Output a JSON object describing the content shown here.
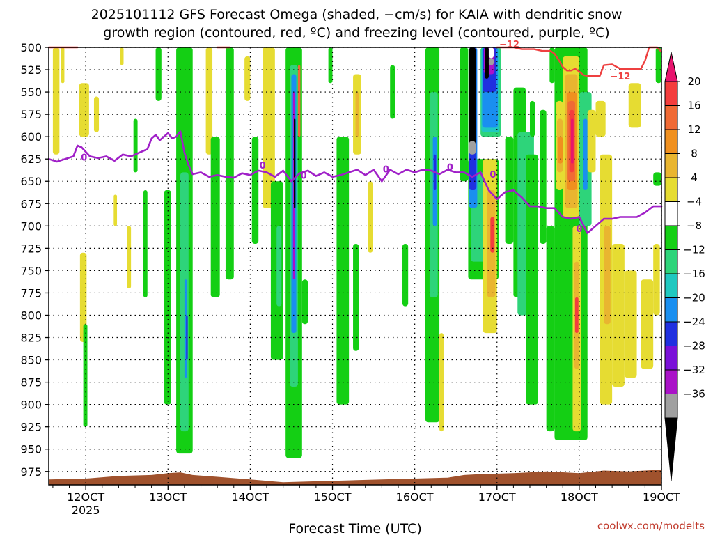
{
  "chart_data": {
    "type": "heatmap",
    "title_lines": [
      "2025101112 GFS Forecast Omega (shaded, −cm/s) for KAIA with dendritic snow",
      "growth region (contoured, red, ºC) and freezing level (contoured, purple, ºC)"
    ],
    "xlabel": "Forecast Time (UTC)",
    "credit": "coolwx.com/modelts",
    "x_range": [
      115.5,
      190
    ],
    "y_range": [
      500,
      990
    ],
    "y_ticks": [
      500,
      525,
      550,
      575,
      600,
      625,
      650,
      675,
      700,
      725,
      750,
      775,
      800,
      825,
      850,
      875,
      900,
      925,
      950,
      975
    ],
    "x_ticks": [
      {
        "value": 120,
        "label": "12OCT",
        "sublabel": "2025"
      },
      {
        "value": 130,
        "label": "13OCT",
        "sublabel": ""
      },
      {
        "value": 140,
        "label": "14OCT",
        "sublabel": ""
      },
      {
        "value": 150,
        "label": "15OCT",
        "sublabel": ""
      },
      {
        "value": 160,
        "label": "16OCT",
        "sublabel": ""
      },
      {
        "value": 170,
        "label": "17OCT",
        "sublabel": ""
      },
      {
        "value": 180,
        "label": "18OCT",
        "sublabel": ""
      },
      {
        "value": 190,
        "label": "19OCT",
        "sublabel": ""
      }
    ],
    "grid": true,
    "colorbar": {
      "labels": [
        "20",
        "16",
        "12",
        "8",
        "4",
        "−4",
        "−8",
        "−12",
        "−16",
        "−20",
        "−24",
        "−28",
        "−32",
        "−36"
      ],
      "colors": [
        "#e8146e",
        "#f43d3d",
        "#f06a35",
        "#f0901f",
        "#e9b530",
        "#e6dc32",
        "#ffffff",
        "#14cf14",
        "#2ed47a",
        "#20c8c0",
        "#1a8ff0",
        "#2030e0",
        "#7a10d8",
        "#aa12c8",
        "#a0a0a0",
        "#000000"
      ]
    },
    "shaded_regions": [
      {
        "x0": 116.0,
        "x1": 116.8,
        "p0": 500,
        "p1": 620,
        "color": "#e6dc32"
      },
      {
        "x0": 117.0,
        "x1": 117.4,
        "p0": 500,
        "p1": 540,
        "color": "#e6dc32"
      },
      {
        "x0": 119.2,
        "x1": 120.4,
        "p0": 540,
        "p1": 600,
        "color": "#e6dc32"
      },
      {
        "x0": 121.0,
        "x1": 121.6,
        "p0": 555,
        "p1": 595,
        "color": "#e6dc32"
      },
      {
        "x0": 119.3,
        "x1": 120.1,
        "p0": 730,
        "p1": 830,
        "color": "#e6dc32"
      },
      {
        "x0": 119.7,
        "x1": 120.2,
        "p0": 810,
        "p1": 925,
        "color": "#14cf14"
      },
      {
        "x0": 123.4,
        "x1": 123.8,
        "p0": 665,
        "p1": 700,
        "color": "#e6dc32"
      },
      {
        "x0": 124.2,
        "x1": 124.6,
        "p0": 500,
        "p1": 520,
        "color": "#e6dc32"
      },
      {
        "x0": 125.0,
        "x1": 125.5,
        "p0": 700,
        "p1": 770,
        "color": "#e6dc32"
      },
      {
        "x0": 125.8,
        "x1": 126.3,
        "p0": 580,
        "p1": 640,
        "color": "#14cf14"
      },
      {
        "x0": 127.0,
        "x1": 127.5,
        "p0": 660,
        "p1": 780,
        "color": "#14cf14"
      },
      {
        "x0": 128.5,
        "x1": 129.2,
        "p0": 500,
        "p1": 560,
        "color": "#14cf14"
      },
      {
        "x0": 129.5,
        "x1": 130.4,
        "p0": 660,
        "p1": 900,
        "color": "#14cf14"
      },
      {
        "x0": 131.0,
        "x1": 133.0,
        "p0": 500,
        "p1": 955,
        "color": "#14cf14"
      },
      {
        "x0": 131.5,
        "x1": 132.5,
        "p0": 640,
        "p1": 930,
        "color": "#2ed47a"
      },
      {
        "x0": 132.0,
        "x1": 132.3,
        "p0": 760,
        "p1": 870,
        "color": "#1a8ff0"
      },
      {
        "x0": 132.2,
        "x1": 132.4,
        "p0": 800,
        "p1": 850,
        "color": "#2030e0"
      },
      {
        "x0": 134.6,
        "x1": 135.4,
        "p0": 500,
        "p1": 620,
        "color": "#e6dc32"
      },
      {
        "x0": 135.2,
        "x1": 136.3,
        "p0": 600,
        "p1": 780,
        "color": "#14cf14"
      },
      {
        "x0": 137.0,
        "x1": 138.0,
        "p0": 500,
        "p1": 760,
        "color": "#14cf14"
      },
      {
        "x0": 139.3,
        "x1": 140.0,
        "p0": 510,
        "p1": 560,
        "color": "#e6dc32"
      },
      {
        "x0": 140.2,
        "x1": 141.0,
        "p0": 600,
        "p1": 720,
        "color": "#14cf14"
      },
      {
        "x0": 141.5,
        "x1": 143.0,
        "p0": 500,
        "p1": 680,
        "color": "#e6dc32"
      },
      {
        "x0": 142.5,
        "x1": 144.0,
        "p0": 650,
        "p1": 850,
        "color": "#14cf14"
      },
      {
        "x0": 143.2,
        "x1": 143.8,
        "p0": 700,
        "p1": 790,
        "color": "#2ed47a"
      },
      {
        "x0": 144.3,
        "x1": 146.3,
        "p0": 500,
        "p1": 960,
        "color": "#14cf14"
      },
      {
        "x0": 144.8,
        "x1": 145.8,
        "p0": 520,
        "p1": 880,
        "color": "#2ed47a"
      },
      {
        "x0": 145.0,
        "x1": 145.6,
        "p0": 530,
        "p1": 820,
        "color": "#1a8ff0"
      },
      {
        "x0": 145.2,
        "x1": 145.4,
        "p0": 550,
        "p1": 760,
        "color": "#aa12c8"
      },
      {
        "x0": 145.3,
        "x1": 145.5,
        "p0": 580,
        "p1": 680,
        "color": "#000000"
      },
      {
        "x0": 145.8,
        "x1": 146.1,
        "p0": 520,
        "p1": 600,
        "color": "#f06a35"
      },
      {
        "x0": 146.3,
        "x1": 147.0,
        "p0": 760,
        "p1": 810,
        "color": "#14cf14"
      },
      {
        "x0": 149.5,
        "x1": 150.0,
        "p0": 500,
        "p1": 540,
        "color": "#14cf14"
      },
      {
        "x0": 150.5,
        "x1": 152.0,
        "p0": 600,
        "p1": 900,
        "color": "#14cf14"
      },
      {
        "x0": 152.5,
        "x1": 153.5,
        "p0": 530,
        "p1": 620,
        "color": "#e6dc32"
      },
      {
        "x0": 152.8,
        "x1": 153.2,
        "p0": 550,
        "p1": 600,
        "color": "#e9b530"
      },
      {
        "x0": 152.5,
        "x1": 153.2,
        "p0": 720,
        "p1": 840,
        "color": "#14cf14"
      },
      {
        "x0": 154.3,
        "x1": 154.9,
        "p0": 650,
        "p1": 730,
        "color": "#e6dc32"
      },
      {
        "x0": 157.0,
        "x1": 157.6,
        "p0": 520,
        "p1": 580,
        "color": "#14cf14"
      },
      {
        "x0": 158.5,
        "x1": 159.2,
        "p0": 720,
        "p1": 790,
        "color": "#14cf14"
      },
      {
        "x0": 161.3,
        "x1": 163.0,
        "p0": 500,
        "p1": 920,
        "color": "#14cf14"
      },
      {
        "x0": 161.8,
        "x1": 162.8,
        "p0": 550,
        "p1": 780,
        "color": "#2ed47a"
      },
      {
        "x0": 162.2,
        "x1": 162.7,
        "p0": 600,
        "p1": 700,
        "color": "#1a8ff0"
      },
      {
        "x0": 162.3,
        "x1": 162.6,
        "p0": 620,
        "p1": 660,
        "color": "#2030e0"
      },
      {
        "x0": 163.0,
        "x1": 163.5,
        "p0": 820,
        "p1": 930,
        "color": "#e6dc32"
      },
      {
        "x0": 165.5,
        "x1": 166.5,
        "p0": 500,
        "p1": 650,
        "color": "#14cf14"
      },
      {
        "x0": 166.5,
        "x1": 170.2,
        "p0": 625,
        "p1": 760,
        "color": "#14cf14"
      },
      {
        "x0": 166.8,
        "x1": 169.5,
        "p0": 640,
        "p1": 740,
        "color": "#2ed47a"
      },
      {
        "x0": 166.6,
        "x1": 167.6,
        "p0": 500,
        "p1": 680,
        "color": "#1a8ff0"
      },
      {
        "x0": 166.6,
        "x1": 167.5,
        "p0": 500,
        "p1": 660,
        "color": "#2030e0"
      },
      {
        "x0": 166.6,
        "x1": 167.4,
        "p0": 500,
        "p1": 610,
        "color": "#000000"
      },
      {
        "x0": 166.6,
        "x1": 167.4,
        "p0": 605,
        "p1": 620,
        "color": "#a0a0a0"
      },
      {
        "x0": 168.0,
        "x1": 170.5,
        "p0": 500,
        "p1": 600,
        "color": "#2ed47a"
      },
      {
        "x0": 168.1,
        "x1": 170.3,
        "p0": 500,
        "p1": 595,
        "color": "#20c8c0"
      },
      {
        "x0": 168.2,
        "x1": 170.1,
        "p0": 500,
        "p1": 590,
        "color": "#1a8ff0"
      },
      {
        "x0": 168.3,
        "x1": 169.9,
        "p0": 500,
        "p1": 550,
        "color": "#2030e0"
      },
      {
        "x0": 168.4,
        "x1": 169.7,
        "p0": 500,
        "p1": 530,
        "color": "#aa12c8"
      },
      {
        "x0": 168.5,
        "x1": 169.0,
        "p0": 500,
        "p1": 535,
        "color": "#000000"
      },
      {
        "x0": 169.0,
        "x1": 169.6,
        "p0": 500,
        "p1": 512,
        "color": "#ffffff"
      },
      {
        "x0": 169.0,
        "x1": 169.6,
        "p0": 512,
        "p1": 520,
        "color": "#a0a0a0"
      },
      {
        "x0": 168.3,
        "x1": 170.0,
        "p0": 625,
        "p1": 820,
        "color": "#e6dc32"
      },
      {
        "x0": 168.8,
        "x1": 169.8,
        "p0": 660,
        "p1": 780,
        "color": "#e9b530"
      },
      {
        "x0": 169.2,
        "x1": 169.7,
        "p0": 690,
        "p1": 730,
        "color": "#f43d3d"
      },
      {
        "x0": 171.0,
        "x1": 172.0,
        "p0": 600,
        "p1": 720,
        "color": "#14cf14"
      },
      {
        "x0": 172.0,
        "x1": 173.5,
        "p0": 545,
        "p1": 780,
        "color": "#14cf14"
      },
      {
        "x0": 172.5,
        "x1": 174.5,
        "p0": 595,
        "p1": 800,
        "color": "#2ed47a"
      },
      {
        "x0": 173.5,
        "x1": 175.0,
        "p0": 620,
        "p1": 900,
        "color": "#14cf14"
      },
      {
        "x0": 174.0,
        "x1": 174.6,
        "p0": 560,
        "p1": 600,
        "color": "#14cf14"
      },
      {
        "x0": 175.2,
        "x1": 176.0,
        "p0": 570,
        "p1": 720,
        "color": "#14cf14"
      },
      {
        "x0": 176.0,
        "x1": 177.0,
        "p0": 700,
        "p1": 930,
        "color": "#14cf14"
      },
      {
        "x0": 176.4,
        "x1": 177.0,
        "p0": 500,
        "p1": 540,
        "color": "#14cf14"
      },
      {
        "x0": 177.0,
        "x1": 181.0,
        "p0": 500,
        "p1": 940,
        "color": "#14cf14"
      },
      {
        "x0": 177.2,
        "x1": 178.0,
        "p0": 560,
        "p1": 660,
        "color": "#e6dc32"
      },
      {
        "x0": 177.3,
        "x1": 178.0,
        "p0": 580,
        "p1": 640,
        "color": "#e9b530"
      },
      {
        "x0": 177.4,
        "x1": 178.0,
        "p0": 600,
        "p1": 630,
        "color": "#f0901f"
      },
      {
        "x0": 178.0,
        "x1": 180.0,
        "p0": 510,
        "p1": 690,
        "color": "#e6dc32"
      },
      {
        "x0": 178.3,
        "x1": 179.8,
        "p0": 530,
        "p1": 680,
        "color": "#e9b530"
      },
      {
        "x0": 178.5,
        "x1": 179.7,
        "p0": 550,
        "p1": 660,
        "color": "#f0901f"
      },
      {
        "x0": 178.6,
        "x1": 179.5,
        "p0": 560,
        "p1": 650,
        "color": "#f06a35"
      },
      {
        "x0": 178.8,
        "x1": 179.4,
        "p0": 570,
        "p1": 640,
        "color": "#f43d3d"
      },
      {
        "x0": 179.0,
        "x1": 179.3,
        "p0": 580,
        "p1": 630,
        "color": "#e8146e"
      },
      {
        "x0": 179.2,
        "x1": 180.2,
        "p0": 700,
        "p1": 930,
        "color": "#e6dc32"
      },
      {
        "x0": 179.4,
        "x1": 180.0,
        "p0": 740,
        "p1": 860,
        "color": "#e9b530"
      },
      {
        "x0": 179.5,
        "x1": 179.9,
        "p0": 780,
        "p1": 820,
        "color": "#f43d3d"
      },
      {
        "x0": 180.0,
        "x1": 181.5,
        "p0": 550,
        "p1": 700,
        "color": "#2ed47a"
      },
      {
        "x0": 180.5,
        "x1": 181.0,
        "p0": 580,
        "p1": 660,
        "color": "#1a8ff0"
      },
      {
        "x0": 181.0,
        "x1": 182.0,
        "p0": 570,
        "p1": 640,
        "color": "#e6dc32"
      },
      {
        "x0": 182.0,
        "x1": 183.2,
        "p0": 560,
        "p1": 600,
        "color": "#e6dc32"
      },
      {
        "x0": 182.5,
        "x1": 184.0,
        "p0": 620,
        "p1": 900,
        "color": "#e6dc32"
      },
      {
        "x0": 183.0,
        "x1": 183.8,
        "p0": 700,
        "p1": 810,
        "color": "#e9b530"
      },
      {
        "x0": 184.0,
        "x1": 185.5,
        "p0": 720,
        "p1": 880,
        "color": "#e6dc32"
      },
      {
        "x0": 185.5,
        "x1": 187.0,
        "p0": 750,
        "p1": 870,
        "color": "#e6dc32"
      },
      {
        "x0": 186.0,
        "x1": 187.5,
        "p0": 540,
        "p1": 590,
        "color": "#e6dc32"
      },
      {
        "x0": 187.5,
        "x1": 189.0,
        "p0": 760,
        "p1": 860,
        "color": "#e6dc32"
      },
      {
        "x0": 189.0,
        "x1": 190.0,
        "p0": 640,
        "p1": 655,
        "color": "#14cf14"
      },
      {
        "x0": 189.0,
        "x1": 189.8,
        "p0": 720,
        "p1": 800,
        "color": "#e6dc32"
      },
      {
        "x0": 189.3,
        "x1": 190.0,
        "p0": 500,
        "p1": 540,
        "color": "#14cf14"
      }
    ],
    "freezing_level": {
      "label": "0",
      "color": "#a020c8",
      "x": [
        115.5,
        116.5,
        117.5,
        118.5,
        119.0,
        119.5,
        120.5,
        121.5,
        122.5,
        123.5,
        124.5,
        125.5,
        126.5,
        127.5,
        128.0,
        128.5,
        129.0,
        130.0,
        130.5,
        131.0,
        131.5,
        132.0,
        132.5,
        133.0,
        134.0,
        135.0,
        136.0,
        137.0,
        138.0,
        139.0,
        140.0,
        141.0,
        142.0,
        143.0,
        144.0,
        145.0,
        146.0,
        147.0,
        148.0,
        149.0,
        150.0,
        151.0,
        152.0,
        153.0,
        154.0,
        155.0,
        156.0,
        157.0,
        158.0,
        159.0,
        160.0,
        161.0,
        162.0,
        163.0,
        164.0,
        165.0,
        166.0,
        167.0,
        168.0,
        169.0,
        170.0,
        171.0,
        172.0,
        173.0,
        174.0,
        175.0,
        176.0,
        177.0,
        178.0,
        179.0,
        180.0,
        181.0,
        182.0,
        183.0,
        184.0,
        185.0,
        186.0,
        187.0,
        188.0,
        189.0,
        190.0
      ],
      "p": [
        625,
        628,
        625,
        622,
        610,
        612,
        622,
        624,
        622,
        627,
        620,
        622,
        618,
        614,
        602,
        598,
        604,
        596,
        602,
        600,
        594,
        618,
        632,
        642,
        640,
        645,
        643,
        645,
        646,
        641,
        643,
        638,
        640,
        645,
        638,
        650,
        641,
        638,
        644,
        640,
        645,
        643,
        640,
        637,
        643,
        637,
        650,
        637,
        642,
        637,
        640,
        637,
        638,
        642,
        637,
        640,
        640,
        645,
        640,
        660,
        670,
        662,
        660,
        668,
        678,
        678,
        680,
        680,
        690,
        692,
        690,
        708,
        700,
        692,
        692,
        690,
        690,
        690,
        685,
        678,
        678
      ]
    },
    "dgz_contour": {
      "label": "−12",
      "color": "#ee4040",
      "segments": [
        {
          "x": [
            115.5,
            116.5,
            117.5,
            118.5,
            119.0
          ],
          "p": [
            497,
            495,
            500,
            496,
            500
          ]
        },
        {
          "x": [
            136.0,
            137.5
          ],
          "p": [
            497,
            495
          ]
        },
        {
          "x": [
            170.0,
            170.5,
            171.0,
            172.0,
            173.0,
            174.5,
            175.5,
            176.0,
            176.5,
            177.0,
            177.5,
            178.0,
            178.5,
            179.0,
            179.5,
            180.0,
            180.5,
            181.0,
            181.5,
            182.0,
            182.5,
            183.0,
            184.0,
            185.0,
            186.0,
            186.5,
            187.0,
            187.5,
            188.0,
            188.5,
            189.0,
            189.5,
            190.0
          ],
          "p": [
            496,
            497,
            497,
            499,
            502,
            502,
            504,
            504,
            504,
            507,
            514,
            522,
            526,
            526,
            524,
            527,
            531,
            532,
            532,
            532,
            532,
            520,
            519,
            524,
            524,
            524,
            524,
            524,
            515,
            495,
            495,
            497,
            505
          ]
        }
      ]
    },
    "terrain_color": "#a0522d"
  }
}
